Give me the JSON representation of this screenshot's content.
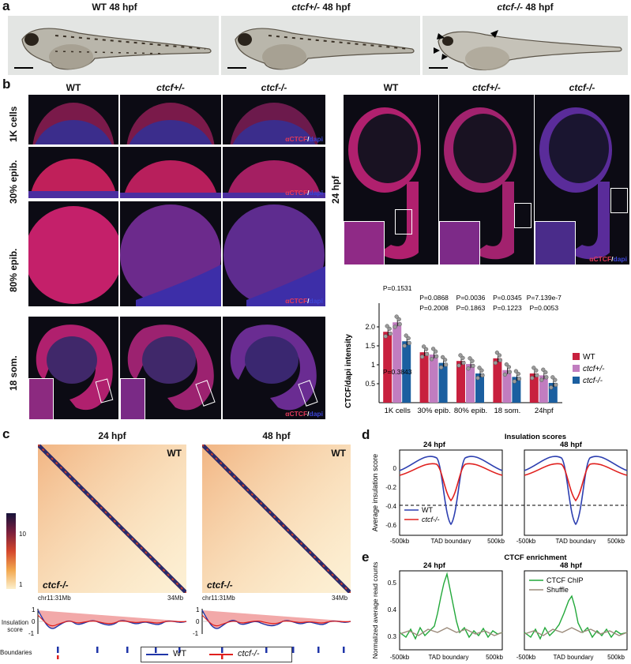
{
  "panel_labels": {
    "a": "a",
    "b": "b",
    "c": "c",
    "d": "d",
    "e": "e"
  },
  "a": {
    "titles": [
      {
        "prefix": "WT 48 hpf",
        "gene": "",
        "suffix": ""
      },
      {
        "prefix": "",
        "gene": "ctcf+/-",
        "suffix": " 48 hpf"
      },
      {
        "prefix": "",
        "gene": "ctcf-/-",
        "suffix": " 48 hpf"
      }
    ]
  },
  "b": {
    "col_headers": [
      "WT",
      "ctcf+/-",
      "ctcf-/-"
    ],
    "row_labels": [
      "1K cells",
      "30% epib.",
      "80% epib.",
      "18 som."
    ],
    "hpf_label": "24 hpf",
    "stain": {
      "alpha": "α",
      "ctcf": "CTCF",
      "slash": "/",
      "dapi": "dapi"
    },
    "colors": {
      "wt": "#c8203e",
      "het": "#c17dc0",
      "hom": "#1b5fa0"
    }
  },
  "chart_data": {
    "type": "bar",
    "ylabel": "CTCF/dapi intensity",
    "ylim": [
      0,
      2.5
    ],
    "yticks": [
      "0.5",
      "1",
      "1.5",
      "2.0"
    ],
    "categories": [
      "1K cells",
      "30% epib.",
      "80% epib.",
      "18 som.",
      "24hpf"
    ],
    "series": [
      {
        "name": "WT",
        "values": [
          1.87,
          1.33,
          1.1,
          1.17,
          0.77
        ]
      },
      {
        "name": "ctcf+/-",
        "values": [
          2.12,
          1.27,
          1.02,
          0.86,
          0.72
        ]
      },
      {
        "name": "ctcf-/-",
        "values": [
          1.62,
          1.05,
          0.77,
          0.68,
          0.52
        ]
      }
    ],
    "pvalues": [
      {
        "top": "P=0.1531",
        "bottom": "P=0.3843"
      },
      {
        "top": "P=0.0868",
        "bottom": "P=0.2008"
      },
      {
        "top": "P=0.0036",
        "bottom": "P=0.1863"
      },
      {
        "top": "P=0.0345",
        "bottom": "P=0.1223"
      },
      {
        "top": "P=7.139e-7",
        "bottom": "P=0.0053"
      }
    ],
    "legend": [
      "WT",
      "ctcf+/-",
      "ctcf-/-"
    ]
  },
  "c": {
    "titles": [
      "24 hpf",
      "48 hpf"
    ],
    "wt": "WT",
    "mut": "ctcf-/-",
    "coord_left": "chr11:31Mb",
    "coord_right": "34Mb",
    "scale_ticks": [
      "10",
      "1"
    ],
    "insulation_label": "Insulation score",
    "boundaries_label": "Boundaries",
    "score_ticks": [
      "1",
      "0",
      "-1"
    ],
    "legend": [
      "WT",
      "ctcf-/-"
    ]
  },
  "d": {
    "title": "Insulation scores",
    "sub": [
      "24 hpf",
      "48 hpf"
    ],
    "ylabel": "Average insulation score",
    "yticks": [
      "0",
      "-0.2",
      "-0.4",
      "-0.6"
    ],
    "xticks": [
      "-500kb",
      "TAD boundary",
      "500kb"
    ],
    "legend": [
      "WT",
      "ctcf-/-"
    ]
  },
  "e": {
    "title": "CTCF enrichment",
    "sub": [
      "24 hpf",
      "48 hpf"
    ],
    "ylabel": "Normalized average read counts",
    "yticks": [
      "0.5",
      "0.4",
      "0.3"
    ],
    "xticks": [
      "-500kb",
      "TAD boundary",
      "500kb"
    ],
    "legend": [
      "CTCF ChIP",
      "Shuffle"
    ]
  }
}
